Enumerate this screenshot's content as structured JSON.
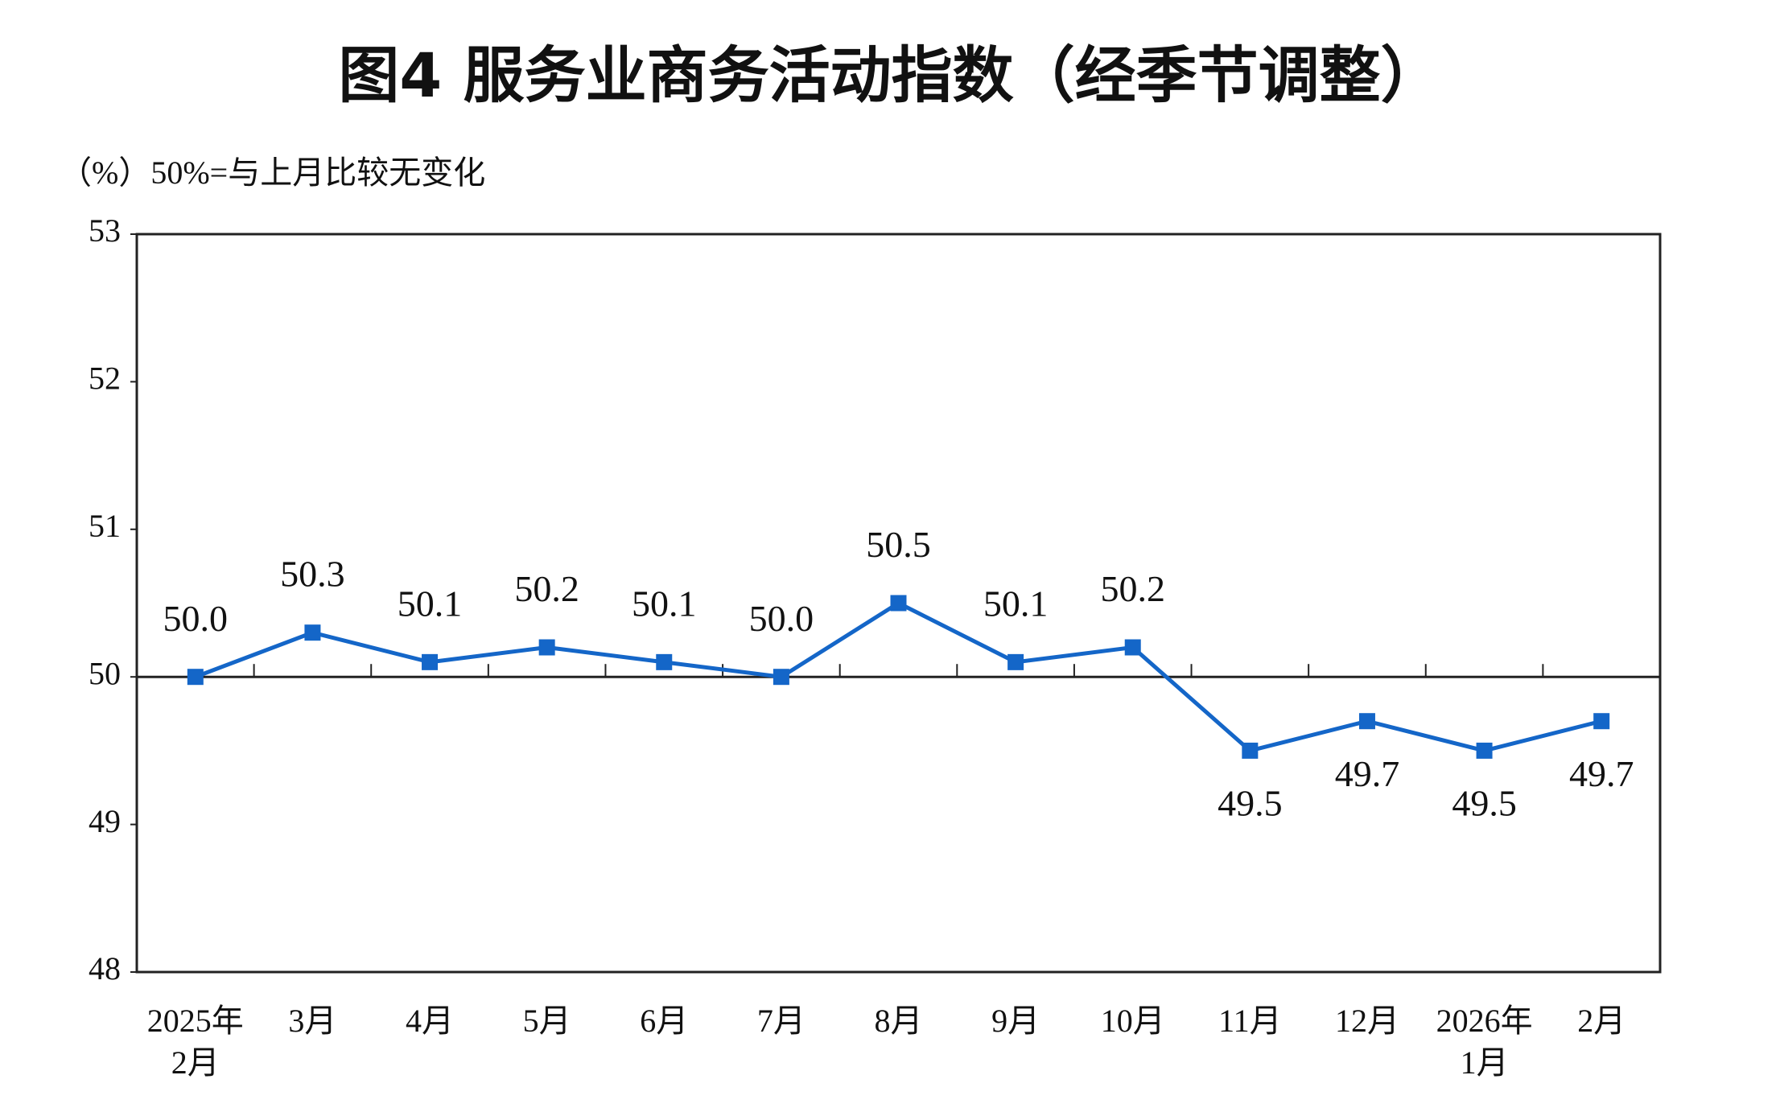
{
  "chart_data": {
    "type": "line",
    "title": "图4  服务业商务活动指数（经季节调整）",
    "subtitle": "（%）50%=与上月比较无变化",
    "categories": [
      [
        "2025年",
        "2月"
      ],
      [
        "3月"
      ],
      [
        "4月"
      ],
      [
        "5月"
      ],
      [
        "6月"
      ],
      [
        "7月"
      ],
      [
        "8月"
      ],
      [
        "9月"
      ],
      [
        "10月"
      ],
      [
        "11月"
      ],
      [
        "12月"
      ],
      [
        "2026年",
        "1月"
      ],
      [
        "2月"
      ]
    ],
    "series": [
      {
        "color": "#1466c8",
        "values": [
          50.0,
          50.3,
          50.1,
          50.2,
          50.1,
          50.0,
          50.5,
          50.1,
          50.2,
          49.5,
          49.7,
          49.5,
          49.7
        ],
        "value_labels": [
          "50.0",
          "50.3",
          "50.1",
          "50.2",
          "50.1",
          "50.0",
          "50.5",
          "50.1",
          "50.2",
          "49.5",
          "49.7",
          "49.5",
          "49.7"
        ]
      }
    ],
    "ylim": [
      48,
      53
    ],
    "yticks": [
      48,
      49,
      50,
      51,
      52,
      53
    ],
    "reference_line": 50,
    "grid": false
  }
}
